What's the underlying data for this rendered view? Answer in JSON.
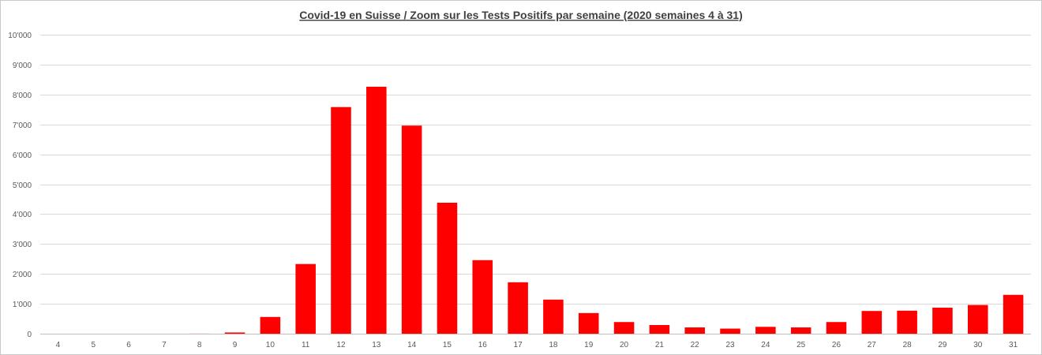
{
  "chart_data": {
    "type": "bar",
    "title": "Covid-19 en Suisse / Zoom  sur les Tests Positifs par semaine (2020 semaines 4 à 31)",
    "xlabel": "",
    "ylabel": "",
    "categories": [
      "4",
      "5",
      "6",
      "7",
      "8",
      "9",
      "10",
      "11",
      "12",
      "13",
      "14",
      "15",
      "16",
      "17",
      "18",
      "19",
      "20",
      "21",
      "22",
      "23",
      "24",
      "25",
      "26",
      "27",
      "28",
      "29",
      "30",
      "31"
    ],
    "values": [
      0,
      0,
      0,
      0,
      2,
      40,
      560,
      2330,
      7580,
      8260,
      6960,
      4380,
      2460,
      1720,
      1140,
      690,
      390,
      290,
      210,
      170,
      230,
      210,
      390,
      760,
      770,
      870,
      960,
      1300
    ],
    "ylim": [
      0,
      10000
    ],
    "yticks": [
      0,
      1000,
      2000,
      3000,
      4000,
      5000,
      6000,
      7000,
      8000,
      9000,
      10000
    ],
    "ytick_labels": [
      "0",
      "1'000",
      "2'000",
      "3'000",
      "4'000",
      "5'000",
      "6'000",
      "7'000",
      "8'000",
      "9'000",
      "10'000"
    ],
    "grid": true,
    "legend": "none",
    "bar_color": "#ff0000"
  }
}
